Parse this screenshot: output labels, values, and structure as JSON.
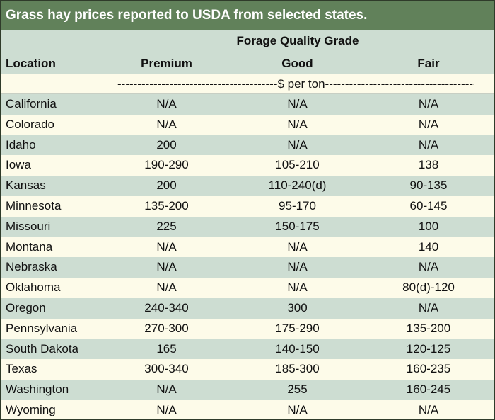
{
  "title": "Grass hay prices reported to USDA from selected states.",
  "header": {
    "group_label": "Forage Quality Grade",
    "location_label": "Location",
    "columns": [
      "Premium",
      "Good",
      "Fair"
    ]
  },
  "units_label": "----------------------------------------$ per ton----------------------------------------",
  "rows": [
    {
      "location": "California",
      "premium": "N/A",
      "good": "N/A",
      "fair": "N/A"
    },
    {
      "location": "Colorado",
      "premium": "N/A",
      "good": "N/A",
      "fair": "N/A"
    },
    {
      "location": "Idaho",
      "premium": "200",
      "good": "N/A",
      "fair": "N/A"
    },
    {
      "location": "Iowa",
      "premium": "190-290",
      "good": "105-210",
      "fair": "138"
    },
    {
      "location": "Kansas",
      "premium": "200",
      "good": "110-240(d)",
      "fair": "90-135"
    },
    {
      "location": "Minnesota",
      "premium": "135-200",
      "good": "95-170",
      "fair": "60-145"
    },
    {
      "location": "Missouri",
      "premium": "225",
      "good": "150-175",
      "fair": "100"
    },
    {
      "location": "Montana",
      "premium": "N/A",
      "good": "N/A",
      "fair": "140"
    },
    {
      "location": "Nebraska",
      "premium": "N/A",
      "good": "N/A",
      "fair": "N/A"
    },
    {
      "location": "Oklahoma",
      "premium": "N/A",
      "good": "N/A",
      "fair": "80(d)-120"
    },
    {
      "location": "Oregon",
      "premium": "240-340",
      "good": "300",
      "fair": "N/A"
    },
    {
      "location": "Pennsylvania",
      "premium": "270-300",
      "good": "175-290",
      "fair": "135-200"
    },
    {
      "location": "South Dakota",
      "premium": "165",
      "good": "140-150",
      "fair": "120-125"
    },
    {
      "location": "Texas",
      "premium": "300-340",
      "good": "185-300",
      "fair": "160-235"
    },
    {
      "location": "Washington",
      "premium": "N/A",
      "good": "255",
      "fair": "160-245"
    },
    {
      "location": "Wyoming",
      "premium": "N/A",
      "good": "N/A",
      "fair": "N/A"
    }
  ]
}
